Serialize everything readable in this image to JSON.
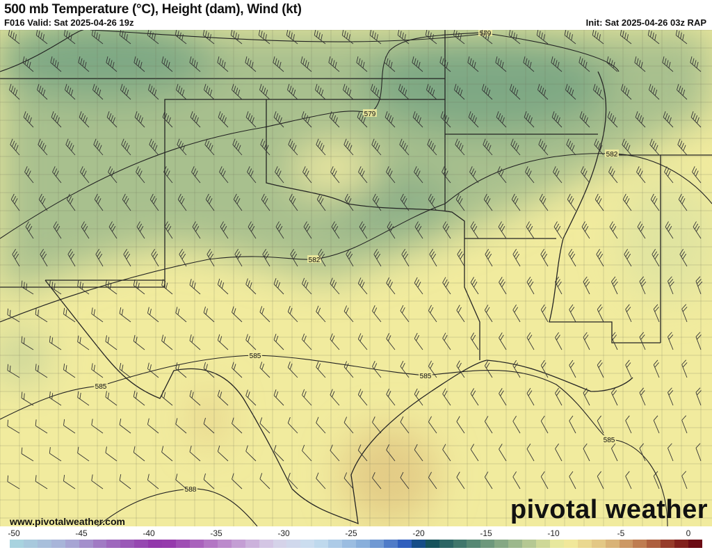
{
  "header": {
    "title": "500 mb Temperature (°C), Height (dam), Wind (kt)",
    "valid": "F016 Valid: Sat 2025-04-26 19z",
    "init": "Init: Sat 2025-04-26 03z RAP"
  },
  "footer": {
    "website": "www.pivotalweather.com",
    "logo_text": "pivotal weather"
  },
  "contours": [
    {
      "label": "579"
    },
    {
      "label": "579"
    },
    {
      "label": "582"
    },
    {
      "label": "582"
    },
    {
      "label": "585"
    },
    {
      "label": "585"
    },
    {
      "label": "585"
    },
    {
      "label": "585"
    },
    {
      "label": "588"
    }
  ],
  "colorbar": {
    "min": -50,
    "max": 0,
    "step": 1,
    "tick_labels": [
      "-50",
      "-45",
      "-40",
      "-35",
      "-30",
      "-25",
      "-20",
      "-15",
      "-10",
      "-5",
      "0"
    ],
    "color_stops": [
      {
        "t": -50,
        "c": "#a8d8e0"
      },
      {
        "t": -46,
        "c": "#a8b0d8"
      },
      {
        "t": -43,
        "c": "#a070c0"
      },
      {
        "t": -39,
        "c": "#9030a8"
      },
      {
        "t": -35,
        "c": "#b880c8"
      },
      {
        "t": -31,
        "c": "#d8d0e8"
      },
      {
        "t": -28,
        "c": "#c8e0f0"
      },
      {
        "t": -24,
        "c": "#80a8d8"
      },
      {
        "t": -21,
        "c": "#2050b8"
      },
      {
        "t": -20,
        "c": "#0c4a58"
      },
      {
        "t": -17,
        "c": "#4a8070"
      },
      {
        "t": -13,
        "c": "#a8c090"
      },
      {
        "t": -10,
        "c": "#f4f0a0"
      },
      {
        "t": -7,
        "c": "#e0c080"
      },
      {
        "t": -4,
        "c": "#b87048"
      },
      {
        "t": -2,
        "c": "#8c2a20"
      },
      {
        "t": 0,
        "c": "#600010"
      }
    ]
  },
  "map_colors": {
    "base": "#f1eb9e",
    "cool": "#a8c08e",
    "cold": "#7ea884",
    "warm": "#e3cc86"
  }
}
